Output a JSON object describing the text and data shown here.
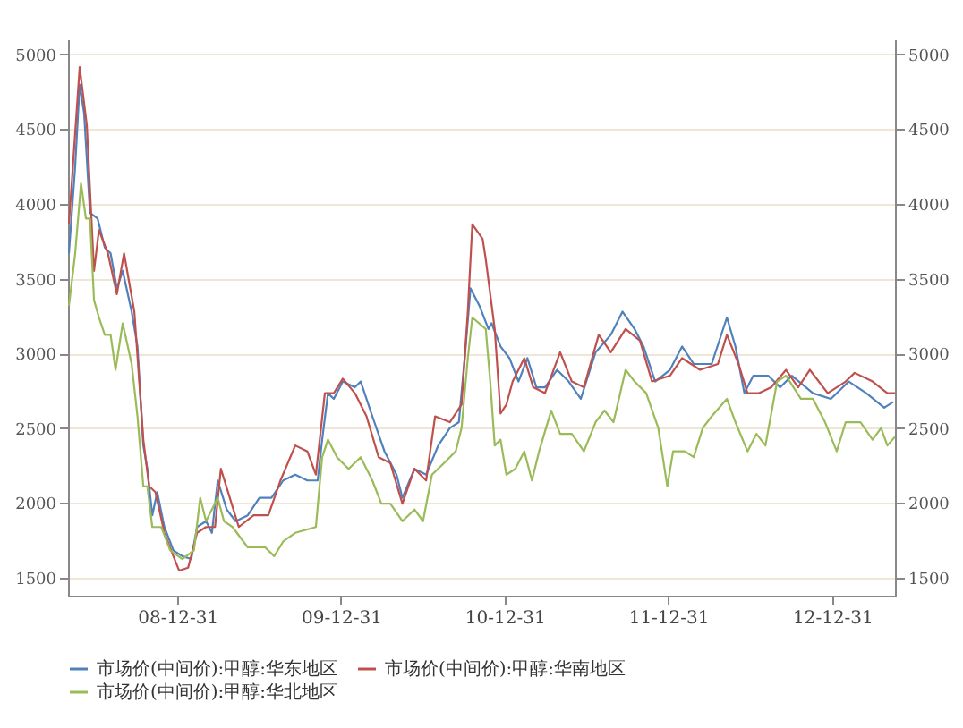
{
  "chart_data": {
    "type": "line",
    "xlim": [
      "2008-05-01",
      "2013-05-20"
    ],
    "xticks": [
      {
        "value": "2008-12-31",
        "label": "08-12-31"
      },
      {
        "value": "2009-12-31",
        "label": "09-12-31"
      },
      {
        "value": "2010-12-31",
        "label": "10-12-31"
      },
      {
        "value": "2011-12-31",
        "label": "11-12-31"
      },
      {
        "value": "2012-12-31",
        "label": "12-12-31"
      }
    ],
    "ylim": [
      1380,
      5100
    ],
    "yticks": [
      1500,
      2000,
      2500,
      3000,
      3500,
      4000,
      4500,
      5000
    ],
    "y2lim": [
      1380,
      5100
    ],
    "y2ticks": [
      1500,
      2000,
      2500,
      3000,
      3500,
      4000,
      4500,
      5000
    ],
    "grid": "y",
    "legend": "bottom",
    "line_style": "solid",
    "series": [
      {
        "name": "市场价(中间价):甲醇:华东地区",
        "color": "#4f81bd",
        "x": [
          "2008-05-03",
          "2008-05-17",
          "2008-05-27",
          "2008-06-06",
          "2008-06-19",
          "2008-07-06",
          "2008-07-22",
          "2008-08-04",
          "2008-08-18",
          "2008-08-31",
          "2008-09-20",
          "2008-10-03",
          "2008-10-16",
          "2008-10-25",
          "2008-11-05",
          "2008-11-16",
          "2008-12-02",
          "2008-12-22",
          "2009-01-11",
          "2009-01-31",
          "2009-02-13",
          "2009-03-05",
          "2009-03-18",
          "2009-03-31",
          "2009-04-20",
          "2009-05-10",
          "2009-06-06",
          "2009-07-02",
          "2009-07-29",
          "2009-08-24",
          "2009-09-20",
          "2009-10-17",
          "2009-11-09",
          "2009-11-19",
          "2009-12-02",
          "2009-12-15",
          "2010-01-04",
          "2010-01-31",
          "2010-02-13",
          "2010-03-11",
          "2010-04-07",
          "2010-05-04",
          "2010-05-17",
          "2010-06-13",
          "2010-07-09",
          "2010-08-05",
          "2010-08-31",
          "2010-09-20",
          "2010-10-03",
          "2010-10-16",
          "2010-11-05",
          "2010-11-25",
          "2010-12-02",
          "2010-12-22",
          "2011-01-11",
          "2011-01-31",
          "2011-02-20",
          "2011-03-12",
          "2011-03-31",
          "2011-04-27",
          "2011-05-23",
          "2011-06-19",
          "2011-07-22",
          "2011-08-25",
          "2011-09-20",
          "2011-10-17",
          "2011-11-06",
          "2011-12-02",
          "2012-01-04",
          "2012-01-31",
          "2012-02-26",
          "2012-04-06",
          "2012-05-10",
          "2012-05-29",
          "2012-06-18",
          "2012-07-08",
          "2012-08-10",
          "2012-09-06",
          "2012-10-02",
          "2012-11-18",
          "2012-12-28",
          "2013-02-06",
          "2013-03-17",
          "2013-04-26",
          "2013-05-16"
        ],
        "values": [
          3669,
          4253,
          4798,
          4603,
          3941,
          3902,
          3708,
          3669,
          3435,
          3552,
          3279,
          3046,
          2384,
          2228,
          1917,
          2072,
          1839,
          1683,
          1644,
          1625,
          1839,
          1878,
          1800,
          2150,
          1956,
          1878,
          1917,
          2034,
          2034,
          2150,
          2189,
          2150,
          2150,
          2423,
          2734,
          2696,
          2812,
          2773,
          2812,
          2579,
          2345,
          2189,
          2034,
          2228,
          2189,
          2384,
          2501,
          2540,
          2968,
          3435,
          3318,
          3163,
          3201,
          3046,
          2968,
          2812,
          2968,
          2773,
          2773,
          2890,
          2812,
          2696,
          3007,
          3124,
          3279,
          3163,
          3046,
          2812,
          2890,
          3046,
          2929,
          2929,
          3240,
          3046,
          2734,
          2851,
          2851,
          2773,
          2851,
          2734,
          2696,
          2812,
          2734,
          2637,
          2676
        ]
      },
      {
        "name": "市场价(中间价):甲醇:华南地区",
        "color": "#c0504d",
        "x": [
          "2008-05-03",
          "2008-05-27",
          "2008-06-12",
          "2008-06-28",
          "2008-07-09",
          "2008-07-29",
          "2008-08-18",
          "2008-09-03",
          "2008-09-26",
          "2008-10-16",
          "2008-10-29",
          "2008-11-12",
          "2008-12-02",
          "2008-12-22",
          "2009-01-04",
          "2009-01-24",
          "2009-02-13",
          "2009-03-05",
          "2009-03-25",
          "2009-04-07",
          "2009-04-27",
          "2009-05-17",
          "2009-06-19",
          "2009-07-22",
          "2009-08-18",
          "2009-09-20",
          "2009-10-17",
          "2009-11-05",
          "2009-11-25",
          "2009-12-15",
          "2010-01-04",
          "2010-01-31",
          "2010-02-26",
          "2010-03-25",
          "2010-04-20",
          "2010-05-17",
          "2010-06-13",
          "2010-07-09",
          "2010-07-29",
          "2010-08-31",
          "2010-09-26",
          "2010-10-10",
          "2010-10-20",
          "2010-11-12",
          "2010-11-19",
          "2010-12-09",
          "2010-12-22",
          "2011-01-04",
          "2011-01-18",
          "2011-02-13",
          "2011-03-05",
          "2011-03-31",
          "2011-05-04",
          "2011-05-30",
          "2011-06-26",
          "2011-07-29",
          "2011-08-25",
          "2011-09-27",
          "2011-10-29",
          "2011-11-25",
          "2012-01-04",
          "2012-01-31",
          "2012-03-11",
          "2012-04-20",
          "2012-05-10",
          "2012-06-05",
          "2012-06-25",
          "2012-07-21",
          "2012-08-17",
          "2012-09-19",
          "2012-10-16",
          "2012-11-11",
          "2012-12-21",
          "2013-01-30",
          "2013-02-19",
          "2013-03-31",
          "2013-05-03",
          "2013-05-20"
        ],
        "values": [
          3863,
          4914,
          4525,
          3552,
          3824,
          3669,
          3396,
          3669,
          3279,
          2423,
          2111,
          2072,
          1800,
          1644,
          1547,
          1567,
          1800,
          1839,
          1839,
          2228,
          2034,
          1839,
          1917,
          1917,
          2150,
          2384,
          2345,
          2189,
          2734,
          2734,
          2831,
          2734,
          2579,
          2306,
          2267,
          1995,
          2228,
          2150,
          2579,
          2540,
          2657,
          3279,
          3863,
          3766,
          3630,
          3163,
          2598,
          2657,
          2812,
          2968,
          2773,
          2734,
          3007,
          2812,
          2773,
          3124,
          3007,
          3163,
          3085,
          2812,
          2851,
          2968,
          2890,
          2929,
          3124,
          2929,
          2734,
          2734,
          2773,
          2890,
          2773,
          2890,
          2734,
          2812,
          2870,
          2812,
          2734,
          2734
        ]
      },
      {
        "name": "市场价(中间价):甲醇:华北地区",
        "color": "#9bbb59",
        "x": [
          "2008-05-03",
          "2008-05-17",
          "2008-05-30",
          "2008-06-10",
          "2008-06-19",
          "2008-06-28",
          "2008-07-09",
          "2008-07-22",
          "2008-08-04",
          "2008-08-15",
          "2008-08-31",
          "2008-09-20",
          "2008-10-03",
          "2008-10-16",
          "2008-10-25",
          "2008-11-05",
          "2008-11-25",
          "2008-12-15",
          "2009-01-11",
          "2009-02-06",
          "2009-02-20",
          "2009-03-05",
          "2009-03-31",
          "2009-04-14",
          "2009-05-03",
          "2009-06-06",
          "2009-07-15",
          "2009-08-04",
          "2009-08-24",
          "2009-09-20",
          "2009-11-05",
          "2009-11-19",
          "2009-12-02",
          "2009-12-22",
          "2010-01-17",
          "2010-02-13",
          "2010-03-11",
          "2010-03-31",
          "2010-04-20",
          "2010-05-17",
          "2010-06-13",
          "2010-07-02",
          "2010-07-22",
          "2010-08-18",
          "2010-09-13",
          "2010-09-26",
          "2010-10-10",
          "2010-10-20",
          "2010-11-19",
          "2010-11-29",
          "2010-12-09",
          "2010-12-22",
          "2011-01-04",
          "2011-01-24",
          "2011-02-13",
          "2011-03-02",
          "2011-03-18",
          "2011-04-14",
          "2011-05-04",
          "2011-05-30",
          "2011-06-26",
          "2011-07-22",
          "2011-08-11",
          "2011-08-31",
          "2011-09-27",
          "2011-10-17",
          "2011-11-12",
          "2011-12-09",
          "2011-12-29",
          "2012-01-11",
          "2012-02-06",
          "2012-02-26",
          "2012-03-17",
          "2012-04-06",
          "2012-05-10",
          "2012-05-29",
          "2012-06-25",
          "2012-07-15",
          "2012-08-04",
          "2012-08-30",
          "2012-09-19",
          "2012-10-22",
          "2012-11-18",
          "2012-12-15",
          "2013-01-10",
          "2013-01-30",
          "2013-03-04",
          "2013-03-31",
          "2013-04-19",
          "2013-05-03",
          "2013-05-20"
        ],
        "values": [
          3318,
          3669,
          4136,
          3902,
          3902,
          3357,
          3240,
          3124,
          3124,
          2890,
          3201,
          2929,
          2579,
          2111,
          2111,
          1839,
          1839,
          1683,
          1625,
          1683,
          2034,
          1878,
          2034,
          1878,
          1839,
          1703,
          1703,
          1644,
          1742,
          1800,
          1839,
          2306,
          2423,
          2306,
          2228,
          2306,
          2150,
          1995,
          1995,
          1878,
          1956,
          1878,
          2189,
          2267,
          2345,
          2501,
          2968,
          3240,
          3163,
          2812,
          2384,
          2423,
          2189,
          2228,
          2345,
          2150,
          2345,
          2617,
          2462,
          2462,
          2345,
          2540,
          2618,
          2540,
          2890,
          2812,
          2734,
          2501,
          2111,
          2345,
          2345,
          2306,
          2501,
          2579,
          2696,
          2540,
          2345,
          2462,
          2384,
          2812,
          2851,
          2696,
          2696,
          2540,
          2345,
          2540,
          2540,
          2423,
          2501,
          2384,
          2442
        ]
      }
    ]
  }
}
